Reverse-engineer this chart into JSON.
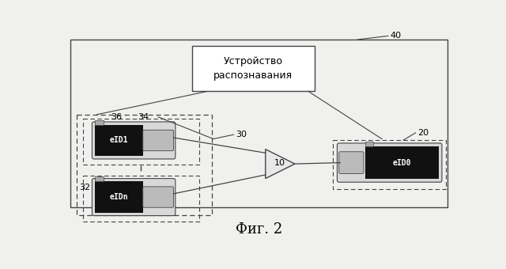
{
  "bg_color": "#f0f0ee",
  "fig_label": "Фиг. 2",
  "device_box_text": "Устройство\nраспознавания",
  "label_40": "40",
  "label_36": "36",
  "label_34": "34",
  "label_32": "32",
  "label_30": "30",
  "label_10": "10",
  "label_20": "20",
  "eID1_text": "eID1",
  "eIDn_text": "eIDn",
  "eID0_text": "eID0",
  "lc": "#444444",
  "dc": "#111111",
  "wc": "#ffffff",
  "gc": "#cccccc"
}
